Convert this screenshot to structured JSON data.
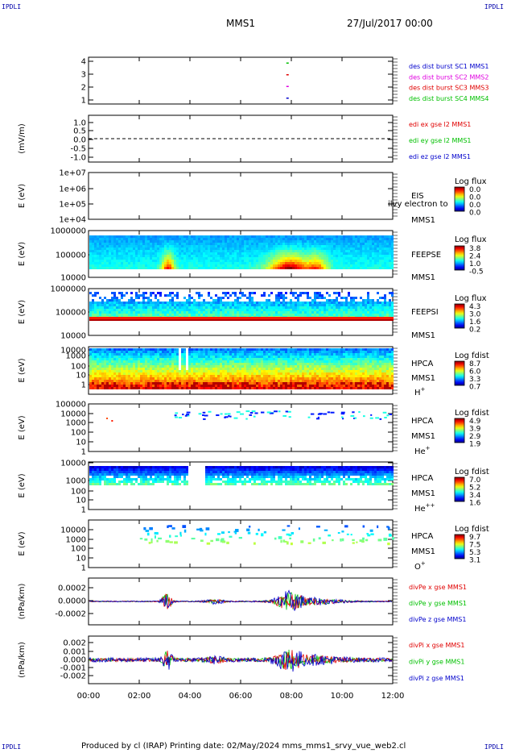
{
  "corner_label": "IPDLI",
  "title": "MMS1",
  "date_label": "27/Jul/2017 00:00",
  "footer": "Produced by cl (IRAP)   Printing date: 02/May/2024   mms_mms1_srvy_vue_web2.cl",
  "x_ticks": [
    "00:00",
    "02:00",
    "04:00",
    "06:00",
    "08:00",
    "10:00",
    "12:00"
  ],
  "colors": {
    "red": "#e00000",
    "green": "#00c000",
    "blue": "#0000cc",
    "magenta": "#e000e0"
  },
  "chart_data": [
    {
      "type": "scatter",
      "panel": "burst",
      "ylim": [
        0.5,
        4.5
      ],
      "ytick_labels": [
        "4",
        "3",
        "2",
        "1"
      ],
      "legend": [
        {
          "text": "des dist burst SC1 MMS1",
          "color": "#0000cc"
        },
        {
          "text": "des dist burst SC2 MMS2",
          "color": "#e000e0"
        },
        {
          "text": "des dist burst SC3 MMS3",
          "color": "#e00000"
        },
        {
          "text": "des dist burst SC4 MMS4",
          "color": "#00c000"
        }
      ],
      "markers": [
        {
          "x_hours": 7.85,
          "y": 4,
          "color": "#00c000"
        },
        {
          "x_hours": 7.85,
          "y": 3,
          "color": "#e00000"
        },
        {
          "x_hours": 7.85,
          "y": 2,
          "color": "#e000e0"
        },
        {
          "x_hours": 7.85,
          "y": 1,
          "color": "#0000cc"
        }
      ]
    },
    {
      "type": "line",
      "panel": "edi",
      "ylabel": "(mV/m)",
      "ylim": [
        -1.3,
        1.3
      ],
      "ytick_labels": [
        "1.0",
        "0.5",
        "0.0",
        "-0.5",
        "-1.0"
      ],
      "reference_line": 0.0,
      "legend": [
        {
          "text": "edi ex gse l2 MMS1",
          "color": "#e00000"
        },
        {
          "text": "edi ey gse l2 MMS1",
          "color": "#00c000"
        },
        {
          "text": "edi ez gse l2 MMS1",
          "color": "#0000cc"
        }
      ]
    },
    {
      "type": "heatmap",
      "panel": "eis",
      "ylabel": "E (eV)",
      "yscale": "log",
      "ytick_labels": [
        "1e+07",
        "1e+06",
        "1e+05",
        "1e+04"
      ],
      "instrument": [
        "EIS",
        "MMS1"
      ],
      "overlay_text": "ilvy electron to",
      "colorbar": {
        "title": "Log flux",
        "values": [
          "0.0",
          "0.0",
          "0.0",
          "0.0"
        ]
      }
    },
    {
      "type": "heatmap",
      "panel": "feepse",
      "ylabel": "E (eV)",
      "yscale": "log",
      "ytick_labels": [
        "1000000",
        "100000",
        "10000"
      ],
      "instrument": [
        "FEEPSE",
        "MMS1"
      ],
      "colorbar": {
        "title": "Log flux",
        "values": [
          "3.8",
          "2.4",
          "1.0",
          "-0.5"
        ]
      }
    },
    {
      "type": "heatmap",
      "panel": "feepsi",
      "ylabel": "E (eV)",
      "yscale": "log",
      "ytick_labels": [
        "1000000",
        "100000",
        "10000"
      ],
      "instrument": [
        "FEEPSI",
        "MMS1"
      ],
      "colorbar": {
        "title": "Log flux",
        "values": [
          "4.3",
          "3.0",
          "1.6",
          "0.2"
        ]
      }
    },
    {
      "type": "heatmap",
      "panel": "hpca_h",
      "ylabel": "E (eV)",
      "yscale": "log",
      "ytick_labels": [
        "10000",
        "1000",
        "100",
        "10",
        "1"
      ],
      "instrument": [
        "HPCA",
        "MMS1",
        "H+"
      ],
      "colorbar": {
        "title": "Log fdist",
        "values": [
          "8.7",
          "6.0",
          "3.3",
          "0.7"
        ]
      }
    },
    {
      "type": "heatmap",
      "panel": "hpca_he",
      "ylabel": "E (eV)",
      "yscale": "log",
      "ytick_labels": [
        "100000",
        "10000",
        "1000",
        "100",
        "10",
        "1"
      ],
      "instrument": [
        "HPCA",
        "MMS1",
        "He+"
      ],
      "colorbar": {
        "title": "Log fdist",
        "values": [
          "4.9",
          "3.9",
          "2.9",
          "1.9"
        ]
      }
    },
    {
      "type": "heatmap",
      "panel": "hpca_hepp",
      "ylabel": "E (eV)",
      "yscale": "log",
      "ytick_labels": [
        "10000",
        "1000",
        "100",
        "10",
        "1"
      ],
      "instrument": [
        "HPCA",
        "MMS1",
        "He++"
      ],
      "colorbar": {
        "title": "Log fdist",
        "values": [
          "7.0",
          "5.2",
          "3.4",
          "1.6"
        ]
      }
    },
    {
      "type": "heatmap",
      "panel": "hpca_o",
      "ylabel": "E (eV)",
      "yscale": "log",
      "ytick_labels": [
        "10000",
        "1000",
        "100",
        "10",
        "1"
      ],
      "instrument": [
        "HPCA",
        "MMS1",
        "O+"
      ],
      "colorbar": {
        "title": "Log fdist",
        "values": [
          "9.7",
          "7.5",
          "5.3",
          "3.1"
        ]
      }
    },
    {
      "type": "line",
      "panel": "divpe",
      "ylabel": "(nPa/km)",
      "ylim": [
        -0.0003,
        0.0003
      ],
      "ytick_labels": [
        "0.0002",
        "0.0000",
        "-0.0002"
      ],
      "legend": [
        {
          "text": "divPe x gse MMS1",
          "color": "#e00000"
        },
        {
          "text": "divPe y gse MMS1",
          "color": "#00c000"
        },
        {
          "text": "divPe z gse MMS1",
          "color": "#0000cc"
        }
      ]
    },
    {
      "type": "line",
      "panel": "divpi",
      "ylabel": "(nPa/km)",
      "ylim": [
        -0.003,
        0.003
      ],
      "ytick_labels": [
        "0.002",
        "0.001",
        "0.000",
        "-0.001",
        "-0.002"
      ],
      "legend": [
        {
          "text": "divPi x gse MMS1",
          "color": "#e00000"
        },
        {
          "text": "divPi y gse MMS1",
          "color": "#00c000"
        },
        {
          "text": "divPi z gse MMS1",
          "color": "#0000cc"
        }
      ]
    }
  ]
}
